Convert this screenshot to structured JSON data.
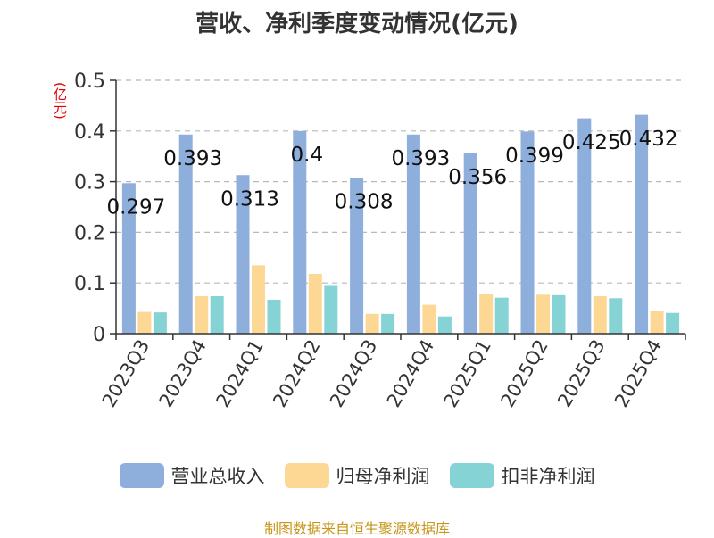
{
  "chart_data": {
    "type": "bar",
    "title": "营收、净利季度变动情况(亿元)",
    "ylabel": "(亿元)",
    "xlabel": "",
    "categories": [
      "2023Q3",
      "2023Q4",
      "2024Q1",
      "2024Q2",
      "2024Q3",
      "2024Q4",
      "2025Q1",
      "2025Q2",
      "2025Q3",
      "2025Q4"
    ],
    "ylim": [
      0,
      0.5
    ],
    "yticks": [
      "0",
      "0.1",
      "0.2",
      "0.3",
      "0.4",
      "0.5"
    ],
    "grid": true,
    "legend_position": "bottom",
    "series": [
      {
        "name": "营业总收入",
        "color": "#8eaedc",
        "values": [
          0.297,
          0.393,
          0.313,
          0.4,
          0.308,
          0.393,
          0.356,
          0.399,
          0.425,
          0.432
        ],
        "labels": [
          "0.297",
          "0.393",
          "0.313",
          "0.4",
          "0.308",
          "0.393",
          "0.356",
          "0.399",
          "0.425",
          "0.432"
        ]
      },
      {
        "name": "归母净利润",
        "color": "#fdd794",
        "values": [
          0.043,
          0.074,
          0.135,
          0.118,
          0.039,
          0.057,
          0.078,
          0.077,
          0.074,
          0.044
        ]
      },
      {
        "name": "扣非净利润",
        "color": "#86d3d6",
        "values": [
          0.042,
          0.074,
          0.067,
          0.096,
          0.039,
          0.034,
          0.071,
          0.076,
          0.07,
          0.041
        ]
      }
    ]
  },
  "footer": "制图数据来自恒生聚源数据库"
}
